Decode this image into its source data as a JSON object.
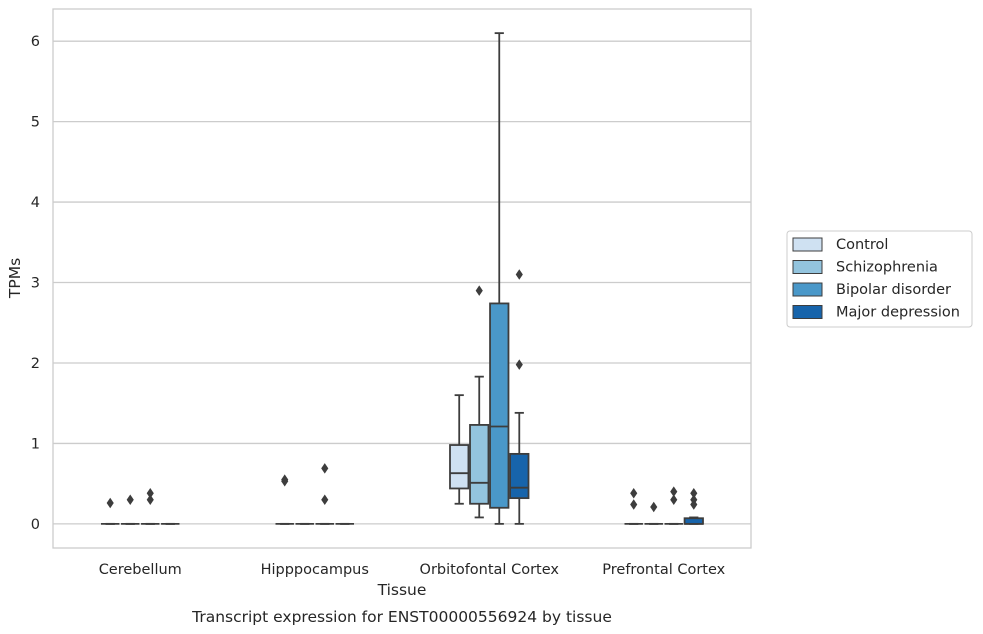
{
  "chart_data": {
    "type": "box",
    "caption": "Transcript expression for ENST00000556924 by tissue",
    "xlabel": "Tissue",
    "ylabel": "TPMs",
    "ylim": [
      -0.3,
      6.4
    ],
    "yticks": [
      0,
      1,
      2,
      3,
      4,
      5,
      6
    ],
    "grid": "horizontal",
    "legend_position": "right",
    "categories": [
      "Cerebellum",
      "Hipppocampus",
      "Orbitofontal Cortex",
      "Prefrontal Cortex"
    ],
    "series": [
      {
        "name": "Control",
        "color": "#cfe1f2",
        "boxes": [
          {
            "whislo": 0,
            "q1": 0,
            "med": 0,
            "q3": 0,
            "whishi": 0,
            "fliers": [
              0.26
            ]
          },
          {
            "whislo": 0,
            "q1": 0,
            "med": 0,
            "q3": 0,
            "whishi": 0,
            "fliers": [
              0.55,
              0.53
            ]
          },
          {
            "whislo": 0.25,
            "q1": 0.44,
            "med": 0.63,
            "q3": 0.98,
            "whishi": 1.6,
            "fliers": []
          },
          {
            "whislo": 0,
            "q1": 0,
            "med": 0,
            "q3": 0,
            "whishi": 0,
            "fliers": [
              0.38,
              0.24
            ]
          }
        ]
      },
      {
        "name": "Schizophrenia",
        "color": "#93c4de",
        "boxes": [
          {
            "whislo": 0,
            "q1": 0,
            "med": 0,
            "q3": 0,
            "whishi": 0,
            "fliers": [
              0.3
            ]
          },
          {
            "whislo": 0,
            "q1": 0,
            "med": 0,
            "q3": 0,
            "whishi": 0,
            "fliers": []
          },
          {
            "whislo": 0.08,
            "q1": 0.25,
            "med": 0.51,
            "q3": 1.23,
            "whishi": 1.83,
            "fliers": [
              2.9
            ]
          },
          {
            "whislo": 0,
            "q1": 0,
            "med": 0,
            "q3": 0,
            "whishi": 0,
            "fliers": [
              0.21
            ]
          }
        ]
      },
      {
        "name": "Bipolar disorder",
        "color": "#4a98c9",
        "boxes": [
          {
            "whislo": 0,
            "q1": 0,
            "med": 0,
            "q3": 0,
            "whishi": 0,
            "fliers": [
              0.38,
              0.3
            ]
          },
          {
            "whislo": 0,
            "q1": 0,
            "med": 0,
            "q3": 0,
            "whishi": 0,
            "fliers": [
              0.69,
              0.3
            ]
          },
          {
            "whislo": 0,
            "q1": 0.2,
            "med": 1.21,
            "q3": 2.74,
            "whishi": 6.1,
            "fliers": []
          },
          {
            "whislo": 0,
            "q1": 0,
            "med": 0,
            "q3": 0,
            "whishi": 0,
            "fliers": [
              0.4,
              0.3
            ]
          }
        ]
      },
      {
        "name": "Major depression",
        "color": "#1764ab",
        "boxes": [
          {
            "whislo": 0,
            "q1": 0,
            "med": 0,
            "q3": 0,
            "whishi": 0,
            "fliers": []
          },
          {
            "whislo": 0,
            "q1": 0,
            "med": 0,
            "q3": 0,
            "whishi": 0,
            "fliers": []
          },
          {
            "whislo": 0,
            "q1": 0.32,
            "med": 0.45,
            "q3": 0.87,
            "whishi": 1.38,
            "fliers": [
              3.1,
              1.98
            ]
          },
          {
            "whislo": 0,
            "q1": 0,
            "med": 0,
            "q3": 0.07,
            "whishi": 0.08,
            "fliers": [
              0.38,
              0.3,
              0.24
            ]
          }
        ]
      }
    ]
  }
}
